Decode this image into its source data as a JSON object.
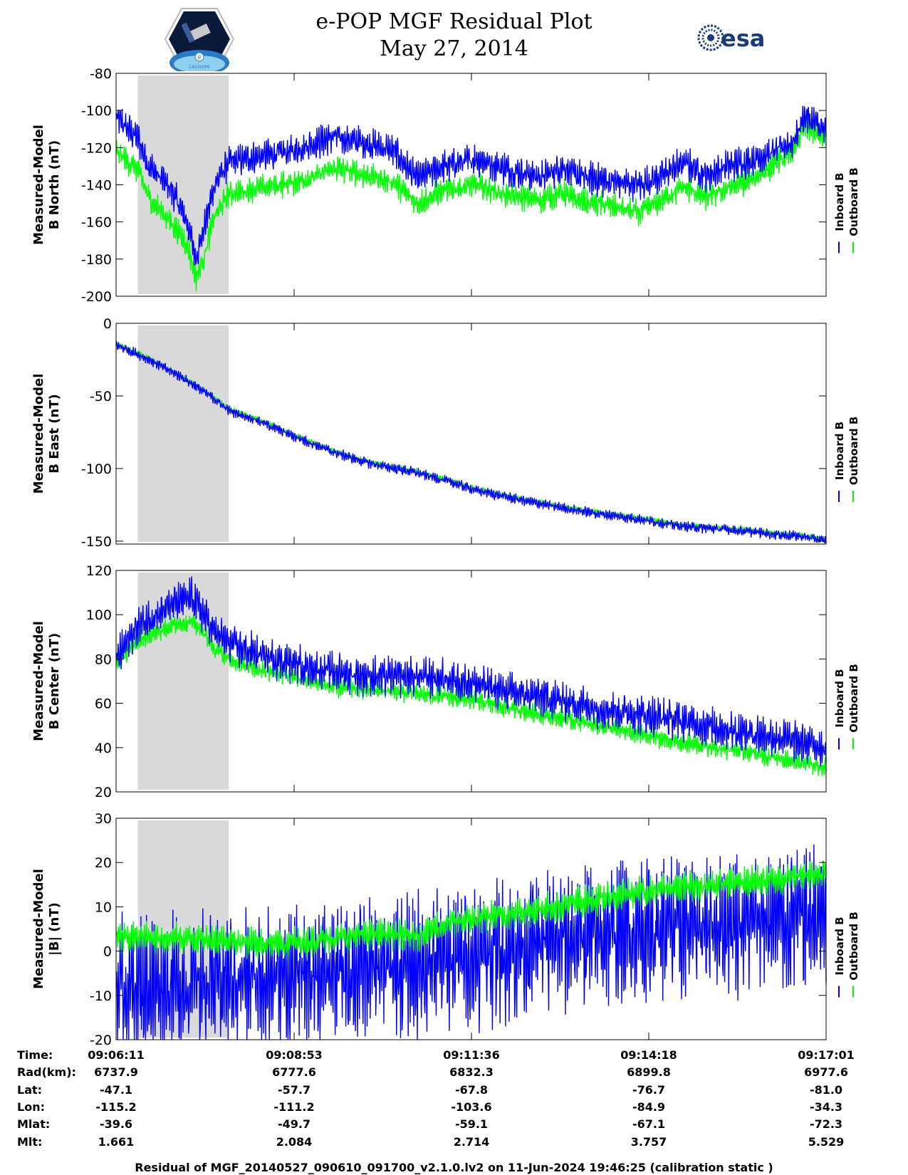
{
  "header": {
    "title": "e-POP MGF Residual Plot",
    "date": "May 27, 2014"
  },
  "logos": {
    "left": {
      "name": "CASSIOPE",
      "text": "CASSIOPE",
      "badge": "e"
    },
    "right": {
      "name": "esa",
      "text": "esa"
    }
  },
  "colors": {
    "inboard": "#0000FF",
    "outboard": "#00FF00",
    "highlight": "#D9D9D9"
  },
  "legend": {
    "inboard": "Inboard B",
    "outboard": "Outboard B"
  },
  "chart_data": [
    {
      "type": "line",
      "ylabel": [
        "Measured-Model",
        "B North (nT)"
      ],
      "ylim": [
        -200,
        -80
      ],
      "yticks": [
        -80,
        -100,
        -120,
        -140,
        -160,
        -180,
        -200
      ],
      "xlim": [
        0,
        650
      ],
      "highlight": [
        20,
        103
      ],
      "series": [
        {
          "name": "Inboard B",
          "x": [
            0,
            20,
            30,
            50,
            65,
            73,
            80,
            90,
            103,
            130,
            160,
            180,
            200,
            230,
            255,
            275,
            300,
            330,
            360,
            390,
            410,
            420,
            450,
            480,
            500,
            520,
            540,
            560,
            580,
            600,
            620,
            630,
            640,
            650
          ],
          "values": [
            -104,
            -115,
            -130,
            -142,
            -160,
            -179,
            -165,
            -140,
            -128,
            -125,
            -122,
            -118,
            -114,
            -118,
            -122,
            -137,
            -130,
            -126,
            -132,
            -136,
            -130,
            -135,
            -138,
            -140,
            -135,
            -128,
            -135,
            -130,
            -127,
            -123,
            -117,
            -103,
            -107,
            -112
          ],
          "noise": 10
        },
        {
          "name": "Outboard B",
          "x": [
            0,
            20,
            30,
            50,
            65,
            73,
            80,
            90,
            103,
            130,
            160,
            180,
            200,
            230,
            255,
            275,
            300,
            330,
            360,
            390,
            410,
            420,
            450,
            480,
            500,
            520,
            540,
            560,
            580,
            600,
            620,
            630,
            640,
            650
          ],
          "values": [
            -122,
            -132,
            -147,
            -160,
            -172,
            -190,
            -180,
            -157,
            -145,
            -142,
            -139,
            -136,
            -131,
            -135,
            -139,
            -150,
            -143,
            -140,
            -146,
            -148,
            -144,
            -148,
            -151,
            -155,
            -148,
            -141,
            -147,
            -142,
            -138,
            -130,
            -122,
            -108,
            -112,
            -116
          ],
          "noise": 8
        }
      ]
    },
    {
      "type": "line",
      "ylabel": [
        "Measured-Model",
        "B East (nT)"
      ],
      "ylim": [
        -152,
        0
      ],
      "yticks": [
        0,
        -50,
        -100,
        -150
      ],
      "xlim": [
        0,
        650
      ],
      "highlight": [
        20,
        103
      ],
      "series": [
        {
          "name": "Inboard B",
          "x": [
            0,
            10,
            30,
            60,
            90,
            103,
            130,
            160,
            180,
            200,
            230,
            255,
            270,
            300,
            330,
            360,
            400,
            440,
            480,
            520,
            560,
            600,
            630,
            650
          ],
          "values": [
            -15,
            -18,
            -25,
            -37,
            -52,
            -60,
            -67,
            -77,
            -83,
            -89,
            -96,
            -100,
            -102,
            -108,
            -115,
            -120,
            -126,
            -131,
            -135,
            -140,
            -142,
            -145,
            -147,
            -150
          ],
          "noise": 4
        },
        {
          "name": "Outboard B",
          "x": [
            0,
            10,
            30,
            60,
            90,
            103,
            130,
            160,
            180,
            200,
            230,
            255,
            270,
            300,
            330,
            360,
            400,
            440,
            480,
            520,
            560,
            600,
            630,
            650
          ],
          "values": [
            -14,
            -17,
            -24,
            -36,
            -51,
            -59,
            -66,
            -76,
            -82,
            -88,
            -95,
            -99,
            -101,
            -107,
            -114,
            -119,
            -125,
            -130,
            -134,
            -139,
            -141,
            -144,
            -146,
            -149
          ],
          "noise": 2
        }
      ]
    },
    {
      "type": "line",
      "ylabel": [
        "Measured-Model",
        "B Center (nT)"
      ],
      "ylim": [
        20,
        120
      ],
      "yticks": [
        120,
        100,
        80,
        60,
        40,
        20
      ],
      "xlim": [
        0,
        650
      ],
      "highlight": [
        20,
        103
      ],
      "series": [
        {
          "name": "Inboard B",
          "x": [
            0,
            20,
            50,
            70,
            80,
            90,
            103,
            130,
            160,
            200,
            240,
            280,
            320,
            360,
            400,
            440,
            480,
            520,
            560,
            600,
            630,
            650
          ],
          "values": [
            80,
            95,
            104,
            108,
            100,
            92,
            87,
            82,
            78,
            74,
            72,
            72,
            70,
            65,
            62,
            58,
            55,
            52,
            48,
            45,
            42,
            40
          ],
          "noise": 10
        },
        {
          "name": "Outboard B",
          "x": [
            0,
            20,
            50,
            70,
            80,
            90,
            103,
            130,
            160,
            200,
            240,
            280,
            320,
            360,
            400,
            440,
            480,
            520,
            560,
            600,
            630,
            650
          ],
          "values": [
            78,
            88,
            95,
            97,
            92,
            85,
            80,
            75,
            72,
            67,
            66,
            64,
            62,
            58,
            54,
            50,
            46,
            42,
            39,
            36,
            33,
            31
          ],
          "noise": 5
        }
      ]
    },
    {
      "type": "line",
      "ylabel": [
        "Measured-Model",
        "|B| (nT)"
      ],
      "ylim": [
        -20,
        30
      ],
      "yticks": [
        30,
        20,
        10,
        0,
        -10,
        -20
      ],
      "xlim": [
        0,
        650
      ],
      "highlight": [
        20,
        103
      ],
      "series": [
        {
          "name": "Inboard B",
          "x": [
            0,
            50,
            100,
            150,
            200,
            250,
            270,
            300,
            350,
            400,
            450,
            500,
            550,
            600,
            650
          ],
          "values": [
            -8,
            -8,
            -7,
            -6,
            -5,
            -4,
            -4,
            -2,
            0,
            2,
            4,
            5,
            6,
            7,
            8
          ],
          "noise": 18
        },
        {
          "name": "Outboard B",
          "x": [
            0,
            50,
            100,
            150,
            200,
            250,
            270,
            300,
            350,
            400,
            450,
            500,
            550,
            600,
            650
          ],
          "values": [
            3,
            3,
            2.5,
            1.5,
            3,
            4,
            3,
            6,
            8,
            10,
            12,
            14,
            15,
            16,
            18
          ],
          "noise": 4
        }
      ]
    }
  ],
  "info": {
    "labels": [
      "Time:",
      "Rad(km):",
      "Lat:",
      "Lon:",
      "Mlat:",
      "Mlt:"
    ],
    "columns": [
      [
        "09:06:11",
        "6737.9",
        "-47.1",
        "-115.2",
        "-39.6",
        "1.661"
      ],
      [
        "09:08:53",
        "6777.6",
        "-57.7",
        "-111.2",
        "-49.7",
        "2.084"
      ],
      [
        "09:11:36",
        "6832.3",
        "-67.8",
        "-103.6",
        "-59.1",
        "2.714"
      ],
      [
        "09:14:18",
        "6899.8",
        "-76.7",
        "-84.9",
        "-67.1",
        "3.757"
      ],
      [
        "09:17:01",
        "6977.6",
        "-81.0",
        "-34.3",
        "-72.3",
        "5.529"
      ]
    ]
  },
  "footer": "Residual of MGF_20140527_090610_091700_v2.1.0.lv2 on 11-Jun-2024 19:46:25 (calibration static )"
}
